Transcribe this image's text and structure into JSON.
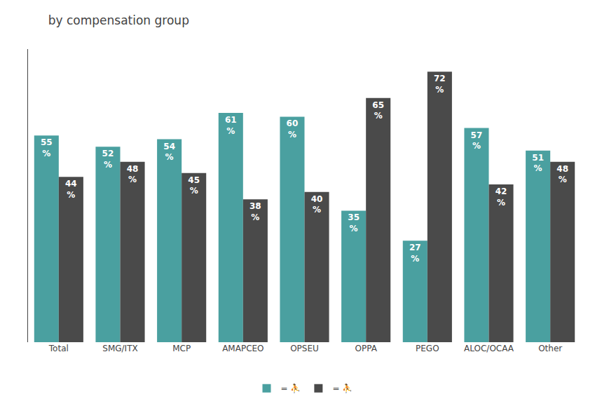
{
  "chart_data": {
    "type": "bar",
    "title": "by compensation group",
    "categories": [
      "Total",
      "SMG/ITX",
      "MCP",
      "AMAPCEO",
      "OPSEU",
      "OPPA",
      "PEGO",
      "ALOC/OCAA",
      "Other"
    ],
    "series": [
      {
        "name": "= ⛹",
        "color": "#4aa0a0",
        "values": [
          55,
          52,
          54,
          61,
          60,
          35,
          27,
          57,
          51
        ],
        "value_labels": [
          "55\n%",
          "52\n%",
          "54\n%",
          "61\n%",
          "60\n%",
          "35\n%",
          "27\n%",
          "57\n%",
          "51\n%"
        ]
      },
      {
        "name": "= ⛹",
        "color": "#4a4a4a",
        "values": [
          44,
          48,
          45,
          38,
          40,
          65,
          72,
          42,
          48
        ],
        "value_labels": [
          "44\n%",
          "48\n%",
          "45\n%",
          "38\n%",
          "40\n%",
          "65\n%",
          "72\n%",
          "42\n%",
          "48\n%"
        ]
      }
    ],
    "ylim": [
      0,
      78
    ],
    "grid": false,
    "legend": "bottom",
    "data_labels": true,
    "tick_labels": "x"
  }
}
